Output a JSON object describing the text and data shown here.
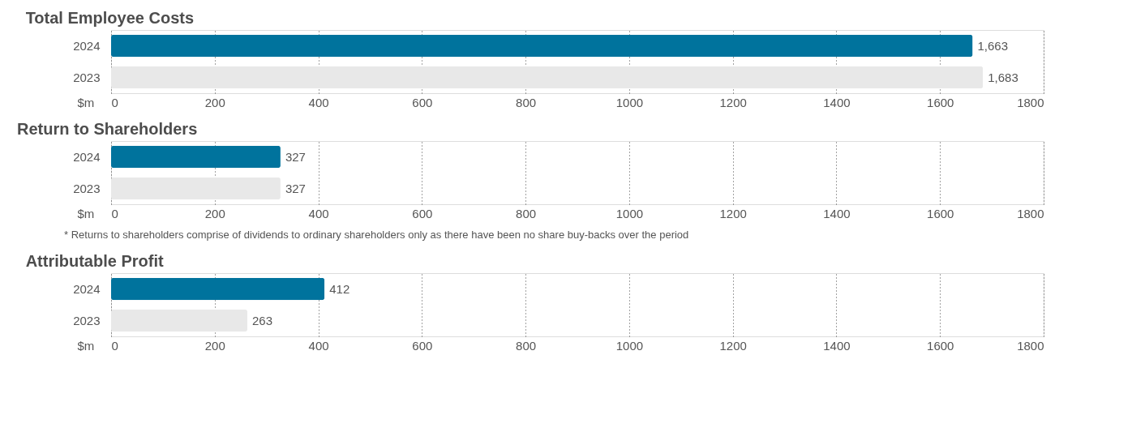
{
  "chart_data": [
    {
      "type": "bar",
      "orientation": "horizontal",
      "title": "Total Employee Costs",
      "categories": [
        "2024",
        "2023"
      ],
      "values": [
        1663,
        1683
      ],
      "value_labels": [
        "1,663",
        "1,683"
      ],
      "colors": [
        "#00739d",
        "#e8e8e8"
      ],
      "xlabel": "$m",
      "xlim": [
        0,
        1800
      ],
      "xticks": [
        0,
        200,
        400,
        600,
        800,
        1000,
        1200,
        1400,
        1600,
        1800
      ],
      "grid": "x"
    },
    {
      "type": "bar",
      "orientation": "horizontal",
      "title": "Return to Shareholders",
      "categories": [
        "2024",
        "2023"
      ],
      "values": [
        327,
        327
      ],
      "colors": [
        "#00739d",
        "#e8e8e8"
      ],
      "xlabel": "$m",
      "xlim": [
        0,
        1800
      ],
      "xticks": [
        0,
        200,
        400,
        600,
        800,
        1000,
        1200,
        1400,
        1600,
        1800
      ],
      "grid": "x",
      "data_labels": true,
      "annotations": [
        "*   Returns to shareholders comprise of dividends to ordinary shareholders only as there have been no share buy-backs over the period"
      ]
    },
    {
      "type": "bar",
      "orientation": "horizontal",
      "title": "Attributable Profit",
      "categories": [
        "2024",
        "2023"
      ],
      "values": [
        412,
        263
      ],
      "colors": [
        "#00739d",
        "#e8e8e8"
      ],
      "xlabel": "$m",
      "xlim": [
        0,
        1800
      ],
      "xticks": [
        0,
        200,
        400,
        600,
        800,
        1000,
        1200,
        1400,
        1600,
        1800
      ],
      "grid": "x",
      "data_labels": true
    }
  ]
}
